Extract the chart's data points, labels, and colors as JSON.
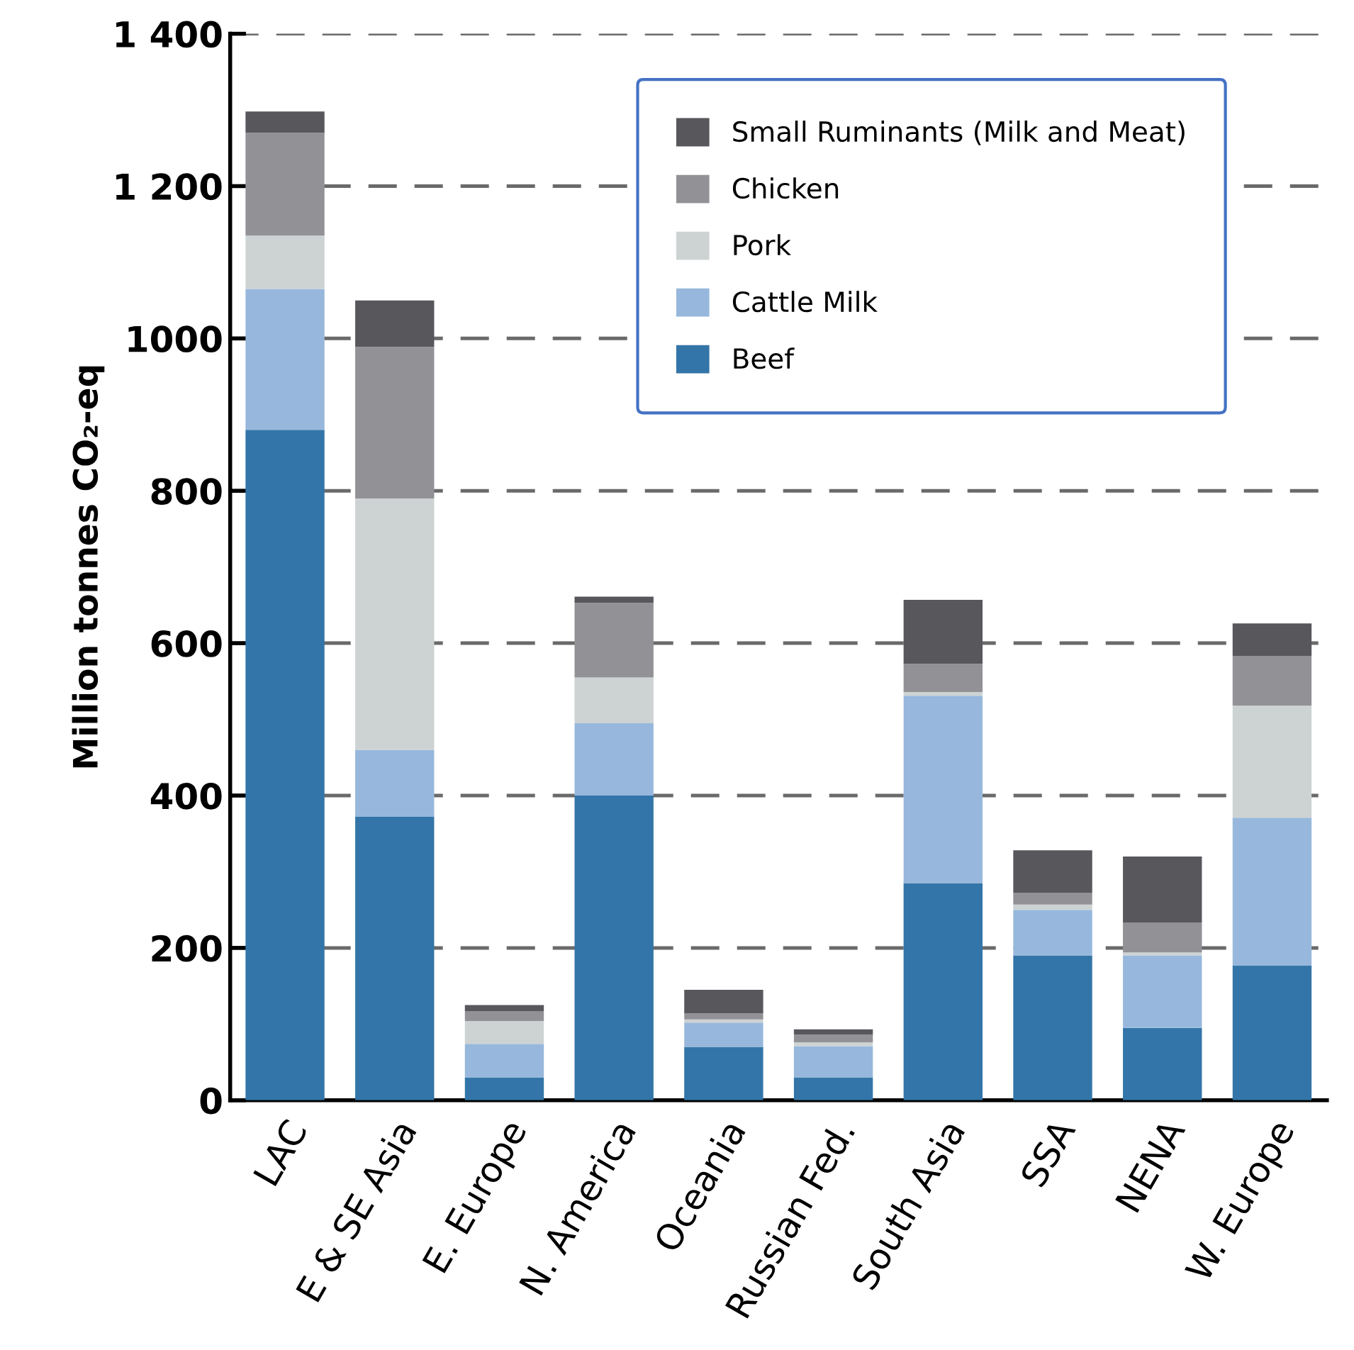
{
  "chart_data": {
    "type": "bar",
    "stacked": true,
    "ylabel": "Million tonnes CO₂-eq",
    "categories": [
      "LAC",
      "E & SE Asia",
      "E. Europe",
      "N. America",
      "Oceania",
      "Russian Fed.",
      "South Asia",
      "SSA",
      "NENA",
      "W. Europe"
    ],
    "series": [
      {
        "name": "Beef",
        "color": "#3375a8",
        "values": [
          880,
          372,
          30,
          400,
          70,
          30,
          285,
          190,
          95,
          177
        ]
      },
      {
        "name": "Cattle Milk",
        "color": "#97b8dc",
        "values": [
          185,
          88,
          44,
          95,
          32,
          41,
          246,
          60,
          95,
          194
        ]
      },
      {
        "name": "Pork",
        "color": "#cdd3d3",
        "values": [
          70,
          330,
          30,
          60,
          4,
          5,
          5,
          7,
          4,
          147
        ]
      },
      {
        "name": "Chicken",
        "color": "#929196",
        "values": [
          135,
          199,
          13,
          98,
          8,
          10,
          37,
          15,
          39,
          65
        ]
      },
      {
        "name": "Small Ruminants (Milk and Meat)",
        "color": "#58575c",
        "values": [
          28,
          61,
          8,
          8,
          31,
          7,
          84,
          56,
          87,
          43
        ]
      }
    ],
    "ylim": [
      0,
      1400
    ],
    "yticks": [
      0,
      200,
      400,
      600,
      800,
      1000,
      {
        "value": 1200,
        "label": "1 200"
      },
      {
        "value": 1400,
        "label": "1 400"
      }
    ],
    "grid": "y",
    "legend": "top right"
  }
}
